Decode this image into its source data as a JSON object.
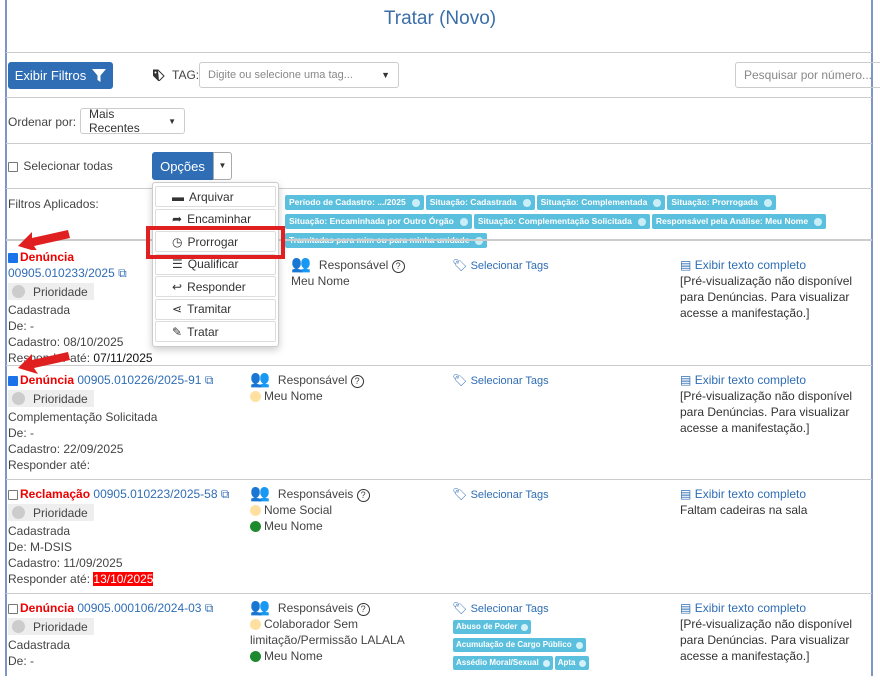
{
  "header": {
    "title": "Tratar (Novo)"
  },
  "toolbar": {
    "filters_button": "Exibir Filtros",
    "tag_label": "TAG:",
    "tag_placeholder": "Digite ou selecione uma tag...",
    "search_placeholder": "Pesquisar por número..."
  },
  "sort": {
    "label": "Ordenar por:",
    "value": "Mais Recentes"
  },
  "selection": {
    "select_all": "Selecionar todas",
    "options_button": "Opções"
  },
  "menu": {
    "items": [
      "Arquivar",
      "Encaminhar",
      "Prorrogar",
      "Qualificar",
      "Responder",
      "Tramitar",
      "Tratar"
    ],
    "highlighted": "Prorrogar"
  },
  "filters": {
    "label": "Filtros Aplicados:",
    "chips": [
      "Período de Cadastro: .../2025",
      "Situação: Cadastrada",
      "Situação: Complementada",
      "Situação: Prorrogada",
      "Situação: Encaminhada por Outro Órgão",
      "Situação: Complementação Solicitada",
      "Responsável pela Análise: Meu Nome",
      "Tramitadas para mim ou para minha unidade"
    ]
  },
  "colors": {
    "accent": "#2f6db5",
    "chip": "#5bc0de",
    "type": "#e00000",
    "highlight": "#e02020"
  },
  "rows": [
    {
      "checked": true,
      "type": "Denúncia",
      "protocol": "00905.010233/2025",
      "priority": "Prioridade",
      "status": "Cadastrada",
      "from": "De: -",
      "created": "Cadastro: 08/10/2025",
      "due_label": "Responder até:",
      "due": "07/11/2025",
      "overdue": false,
      "resp_label": "Responsável",
      "responsibles": [
        {
          "name": "Meu Nome",
          "state": "none"
        }
      ],
      "tags_link": "Selecionar Tags",
      "tags": [],
      "text_link": "Exibir texto completo",
      "preview": "[Pré-visualização não disponível para Denúncias. Para visualizar acesse a manifestação.]"
    },
    {
      "checked": true,
      "type": "Denúncia",
      "protocol": "00905.010226/2025-91",
      "priority": "Prioridade",
      "status": "Complementação Solicitada",
      "from": "De: -",
      "created": "Cadastro: 22/09/2025",
      "due_label": "Responder até:",
      "due": "",
      "overdue": false,
      "resp_label": "Responsável",
      "responsibles": [
        {
          "name": "Meu Nome",
          "state": "pending"
        }
      ],
      "tags_link": "Selecionar Tags",
      "tags": [],
      "text_link": "Exibir texto completo",
      "preview": "[Pré-visualização não disponível para Denúncias. Para visualizar acesse a manifestação.]"
    },
    {
      "checked": false,
      "type": "Reclamação",
      "protocol": "00905.010223/2025-58",
      "priority": "Prioridade",
      "status": "Cadastrada",
      "from": "De: M-DSIS",
      "created": "Cadastro: 11/09/2025",
      "due_label": "Responder até:",
      "due": "13/10/2025",
      "overdue": true,
      "resp_label": "Responsáveis",
      "responsibles": [
        {
          "name": "Nome Social",
          "state": "pending"
        },
        {
          "name": "Meu Nome",
          "state": "ok"
        }
      ],
      "tags_link": "Selecionar Tags",
      "tags": [],
      "text_link": "Exibir texto completo",
      "preview": "Faltam cadeiras na sala"
    },
    {
      "checked": false,
      "type": "Denúncia",
      "protocol": "00905.000106/2024-03",
      "priority": "Prioridade",
      "status": "Cadastrada",
      "from": "De: -",
      "created": "",
      "due_label": "",
      "due": "",
      "overdue": false,
      "resp_label": "Responsáveis",
      "responsibles": [
        {
          "name": "Colaborador Sem limitação/Permissão LALALA",
          "state": "pending"
        },
        {
          "name": "Meu Nome",
          "state": "ok"
        }
      ],
      "tags_link": "Selecionar Tags",
      "tags": [
        "Abuso de Poder",
        "Acumulação de Cargo Público",
        "Assédio Moral/Sexual",
        "Apta"
      ],
      "text_link": "Exibir texto completo",
      "preview": "[Pré-visualização não disponível para Denúncias. Para visualizar acesse a manifestação.]"
    }
  ]
}
